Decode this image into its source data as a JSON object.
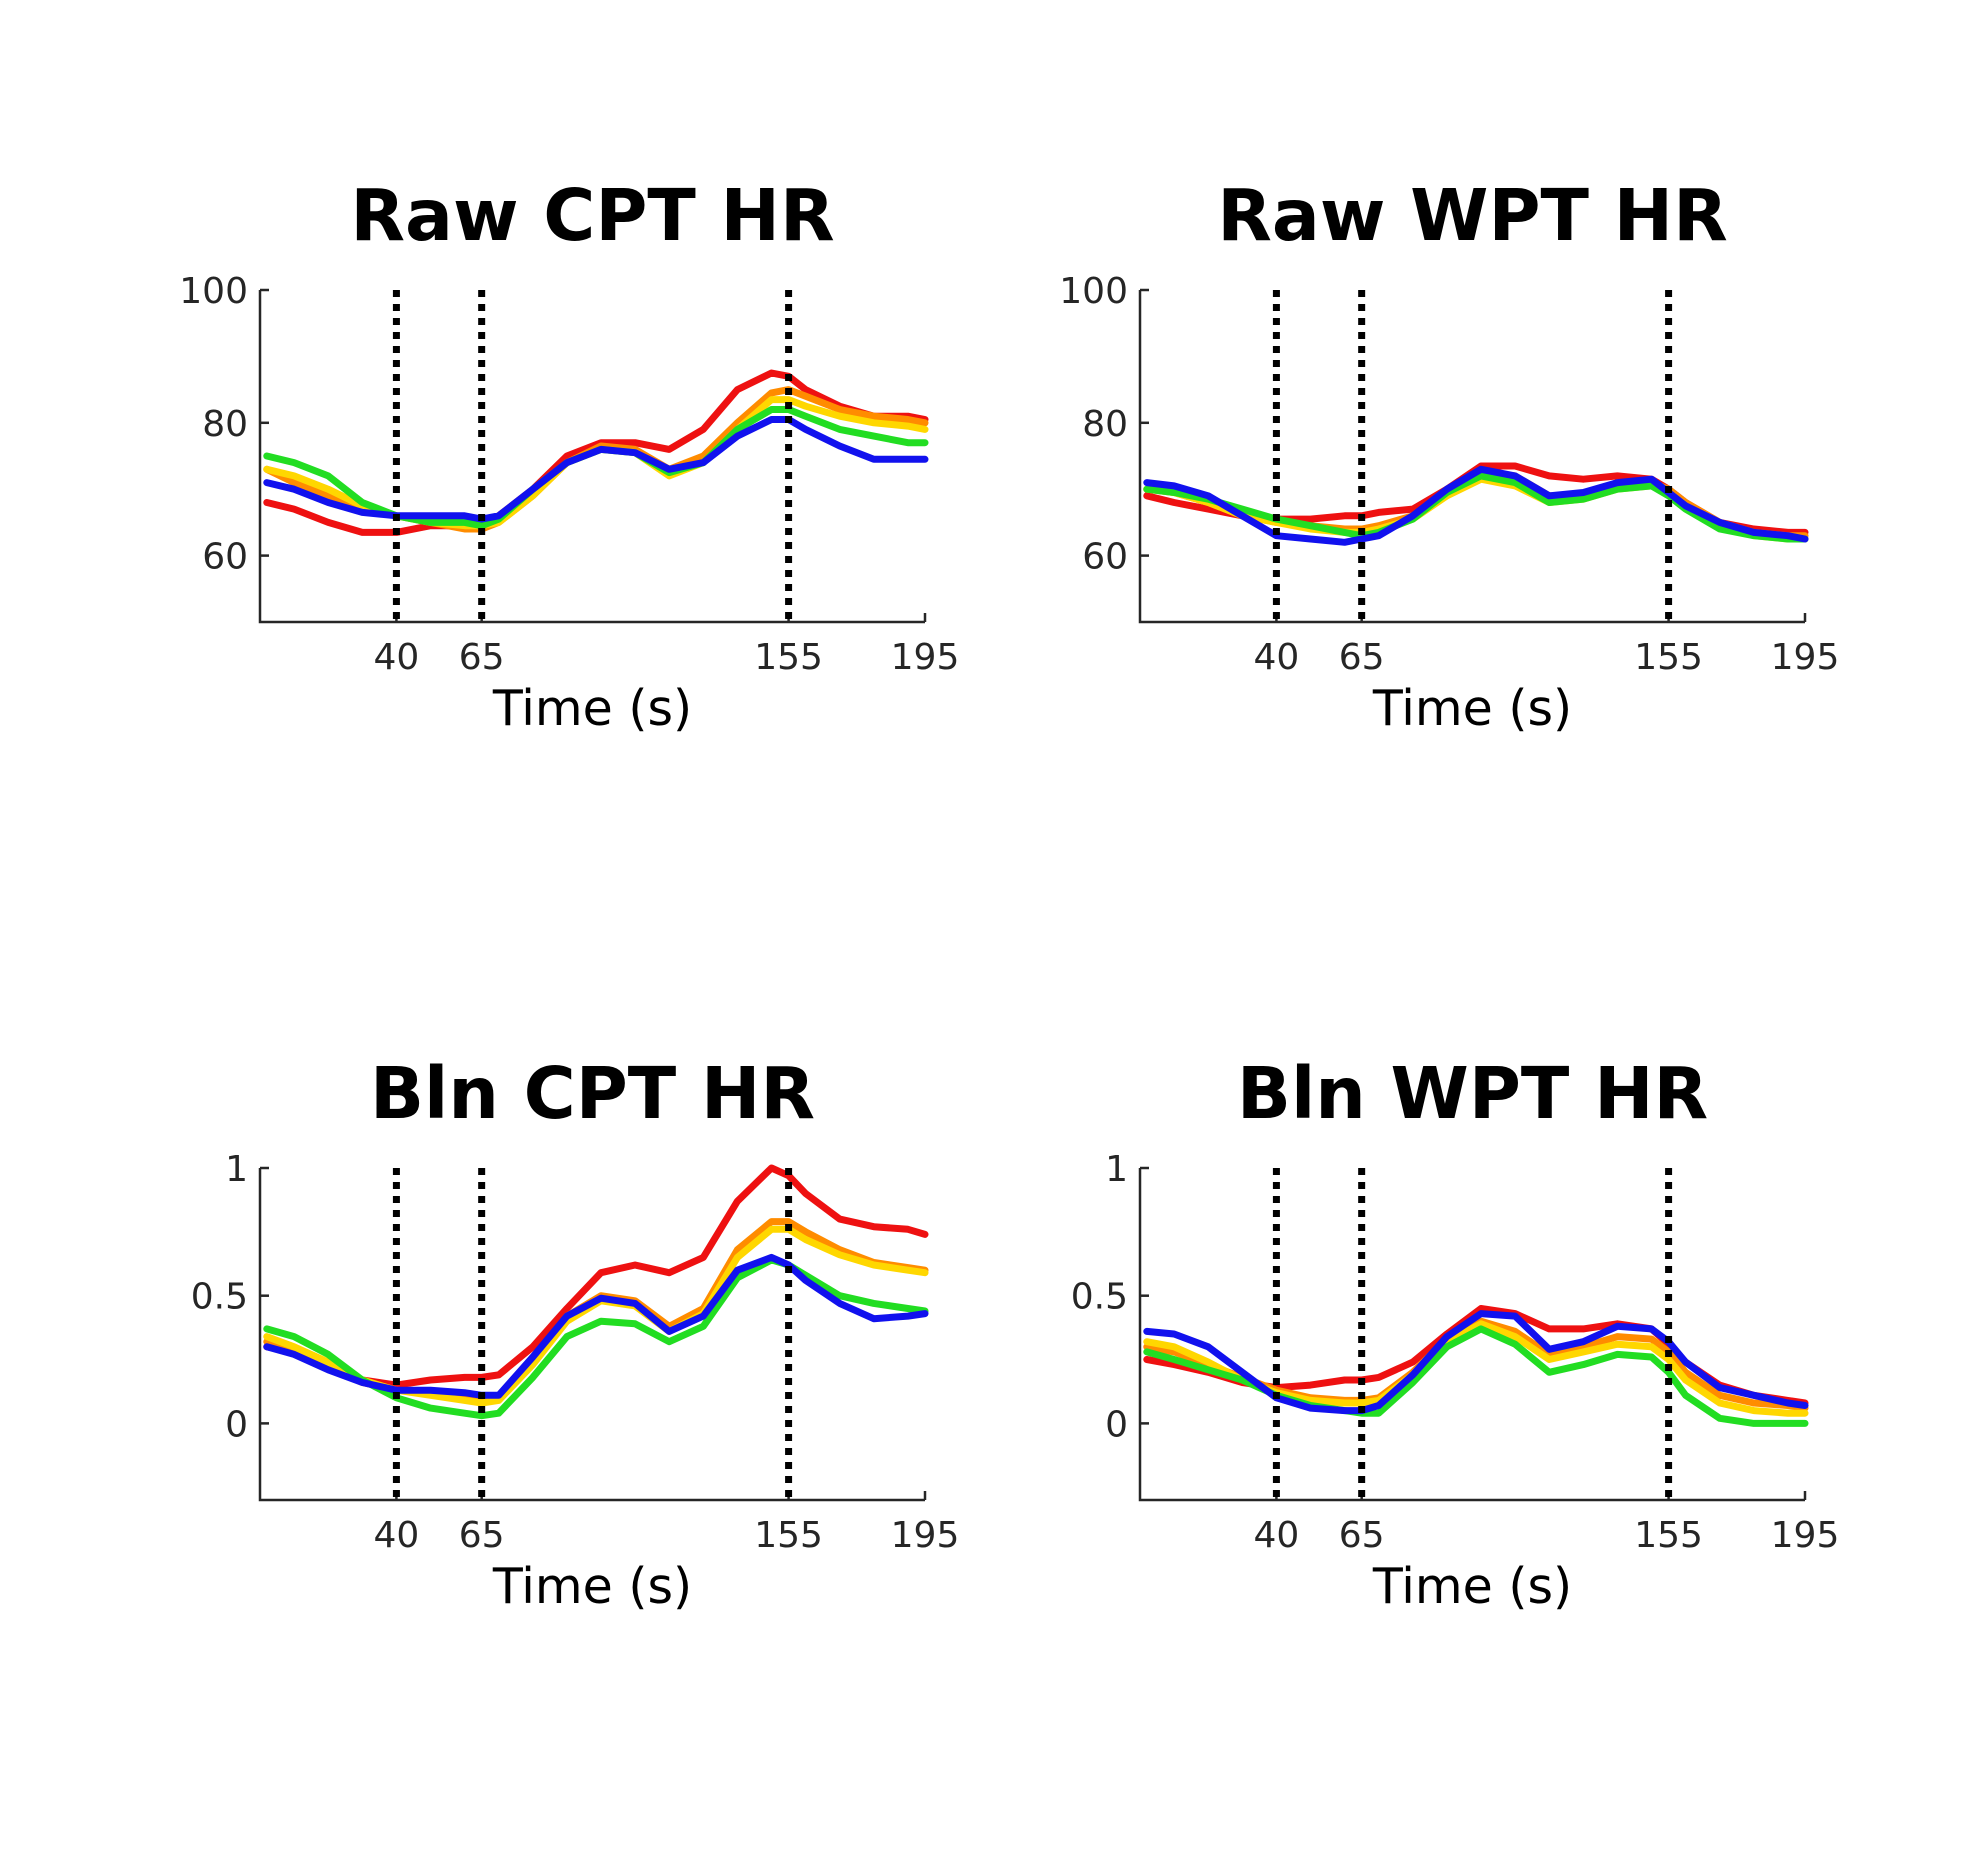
{
  "chart_data": [
    {
      "type": "line",
      "title": "Raw CPT HR",
      "xlabel": "Time (s)",
      "ylabel": "",
      "xlim": [
        0,
        195
      ],
      "ylim": [
        50,
        100
      ],
      "xticks": [
        40,
        65,
        155,
        195
      ],
      "yticks": [
        60,
        80,
        100
      ],
      "vlines": [
        40,
        65,
        155
      ],
      "x": [
        2,
        10,
        20,
        30,
        40,
        50,
        60,
        65,
        70,
        80,
        90,
        100,
        110,
        120,
        130,
        140,
        150,
        155,
        160,
        170,
        180,
        190,
        195
      ],
      "series": [
        {
          "color": "#ee1111",
          "values": [
            68,
            67,
            65,
            63.5,
            63.5,
            64.5,
            64.5,
            65,
            66,
            70,
            75,
            77,
            77,
            76,
            79,
            85,
            87.5,
            87,
            85,
            82.5,
            81,
            81,
            80.5
          ]
        },
        {
          "color": "#ff8c00",
          "values": [
            73,
            71,
            69,
            67,
            66,
            65,
            64,
            64,
            65,
            69,
            74,
            76.5,
            76,
            73,
            75,
            80,
            84.5,
            85,
            84,
            82,
            81,
            80.5,
            80
          ]
        },
        {
          "color": "#ffd700",
          "values": [
            73,
            72,
            70,
            67.5,
            66,
            65,
            64.5,
            64.5,
            65,
            69,
            74,
            76,
            75.5,
            72,
            74,
            79,
            83.5,
            83.5,
            82.5,
            81,
            80,
            79.5,
            79
          ]
        },
        {
          "color": "#22dd22",
          "values": [
            75,
            74,
            72,
            68,
            66,
            65,
            65,
            64.5,
            65.5,
            70,
            74,
            76,
            75.5,
            72.5,
            74,
            79,
            82,
            82,
            81,
            79,
            78,
            77,
            77
          ]
        },
        {
          "color": "#1111ee",
          "values": [
            71,
            70,
            68,
            66.5,
            66,
            66,
            66,
            65.5,
            66,
            70,
            74,
            76,
            75.5,
            73,
            74,
            78,
            80.5,
            80.5,
            79,
            76.5,
            74.5,
            74.5,
            74.5
          ]
        }
      ]
    },
    {
      "type": "line",
      "title": "Raw WPT HR",
      "xlabel": "Time (s)",
      "ylabel": "",
      "xlim": [
        0,
        195
      ],
      "ylim": [
        50,
        100
      ],
      "xticks": [
        40,
        65,
        155,
        195
      ],
      "yticks": [
        60,
        80,
        100
      ],
      "vlines": [
        40,
        65,
        155
      ],
      "x": [
        2,
        10,
        20,
        30,
        40,
        50,
        60,
        65,
        70,
        80,
        90,
        100,
        110,
        120,
        130,
        140,
        150,
        155,
        160,
        170,
        180,
        190,
        195
      ],
      "series": [
        {
          "color": "#ee1111",
          "values": [
            69,
            68,
            67,
            66,
            65.5,
            65.5,
            66,
            66,
            66.5,
            67,
            70,
            73.5,
            73.5,
            72,
            71.5,
            72,
            71.5,
            70,
            68,
            65,
            64,
            63.5,
            63.5
          ]
        },
        {
          "color": "#ff8c00",
          "values": [
            70,
            69.5,
            68,
            66,
            65,
            64.5,
            64,
            64,
            64.5,
            66,
            69.5,
            72.5,
            72,
            69,
            69,
            71,
            71,
            70,
            68,
            65,
            63.5,
            63,
            63
          ]
        },
        {
          "color": "#ffd700",
          "values": [
            70,
            69.5,
            68,
            66,
            65,
            64,
            63.5,
            63.5,
            64,
            65.5,
            69,
            71.5,
            70.5,
            68,
            68.5,
            70,
            70.5,
            69.5,
            67.5,
            64.5,
            63,
            62.5,
            62.5
          ]
        },
        {
          "color": "#22dd22",
          "values": [
            70,
            69.5,
            68.5,
            67,
            65.5,
            64.5,
            63.5,
            63,
            63.5,
            65.5,
            69.5,
            72,
            71,
            68,
            68.5,
            70,
            70.5,
            69,
            67,
            64,
            63,
            62.5,
            62.5
          ]
        },
        {
          "color": "#1111ee",
          "values": [
            71,
            70.5,
            69,
            66,
            63,
            62.5,
            62,
            62.5,
            63,
            66,
            70,
            73,
            72,
            69,
            69.5,
            71,
            71.5,
            69.5,
            67.5,
            65,
            63.5,
            63,
            62.5
          ]
        }
      ]
    },
    {
      "type": "line",
      "title": "Bln CPT HR",
      "xlabel": "Time (s)",
      "ylabel": "",
      "xlim": [
        0,
        195
      ],
      "ylim": [
        -0.3,
        1
      ],
      "xticks": [
        40,
        65,
        155,
        195
      ],
      "yticks": [
        0,
        0.5,
        1
      ],
      "yticklabels": [
        "0",
        "0.5",
        "1"
      ],
      "vlines": [
        40,
        65,
        155
      ],
      "x": [
        2,
        10,
        20,
        30,
        40,
        50,
        60,
        65,
        70,
        80,
        90,
        100,
        110,
        120,
        130,
        140,
        150,
        155,
        160,
        170,
        180,
        190,
        195
      ],
      "series": [
        {
          "color": "#ee1111",
          "values": [
            0.3,
            0.28,
            0.22,
            0.17,
            0.15,
            0.17,
            0.18,
            0.18,
            0.19,
            0.3,
            0.45,
            0.59,
            0.62,
            0.59,
            0.65,
            0.87,
            1.0,
            0.97,
            0.9,
            0.8,
            0.77,
            0.76,
            0.74
          ]
        },
        {
          "color": "#ff8c00",
          "values": [
            0.32,
            0.28,
            0.22,
            0.16,
            0.13,
            0.12,
            0.1,
            0.09,
            0.1,
            0.25,
            0.42,
            0.5,
            0.48,
            0.38,
            0.45,
            0.68,
            0.79,
            0.79,
            0.75,
            0.68,
            0.63,
            0.61,
            0.6
          ]
        },
        {
          "color": "#ffd700",
          "values": [
            0.34,
            0.3,
            0.24,
            0.17,
            0.13,
            0.11,
            0.09,
            0.08,
            0.09,
            0.23,
            0.4,
            0.48,
            0.46,
            0.36,
            0.43,
            0.65,
            0.76,
            0.76,
            0.72,
            0.66,
            0.62,
            0.6,
            0.59
          ]
        },
        {
          "color": "#22dd22",
          "values": [
            0.37,
            0.34,
            0.27,
            0.17,
            0.1,
            0.06,
            0.04,
            0.03,
            0.04,
            0.18,
            0.34,
            0.4,
            0.39,
            0.32,
            0.38,
            0.57,
            0.64,
            0.62,
            0.58,
            0.5,
            0.47,
            0.45,
            0.44
          ]
        },
        {
          "color": "#1111ee",
          "values": [
            0.3,
            0.27,
            0.21,
            0.16,
            0.13,
            0.13,
            0.12,
            0.11,
            0.11,
            0.26,
            0.42,
            0.49,
            0.47,
            0.36,
            0.42,
            0.6,
            0.65,
            0.62,
            0.56,
            0.47,
            0.41,
            0.42,
            0.43
          ]
        }
      ]
    },
    {
      "type": "line",
      "title": "Bln WPT HR",
      "xlabel": "Time (s)",
      "ylabel": "",
      "xlim": [
        0,
        195
      ],
      "ylim": [
        -0.3,
        1
      ],
      "xticks": [
        40,
        65,
        155,
        195
      ],
      "yticks": [
        0,
        0.5,
        1
      ],
      "yticklabels": [
        "0",
        "0.5",
        "1"
      ],
      "vlines": [
        40,
        65,
        155
      ],
      "x": [
        2,
        10,
        20,
        30,
        40,
        50,
        60,
        65,
        70,
        80,
        90,
        100,
        110,
        120,
        130,
        140,
        150,
        155,
        160,
        170,
        180,
        190,
        195
      ],
      "series": [
        {
          "color": "#ee1111",
          "values": [
            0.25,
            0.23,
            0.2,
            0.16,
            0.14,
            0.15,
            0.17,
            0.17,
            0.18,
            0.24,
            0.35,
            0.45,
            0.43,
            0.37,
            0.37,
            0.39,
            0.37,
            0.31,
            0.24,
            0.15,
            0.11,
            0.09,
            0.08
          ]
        },
        {
          "color": "#ff8c00",
          "values": [
            0.3,
            0.28,
            0.23,
            0.18,
            0.13,
            0.1,
            0.09,
            0.09,
            0.1,
            0.2,
            0.33,
            0.4,
            0.36,
            0.27,
            0.3,
            0.34,
            0.33,
            0.28,
            0.2,
            0.11,
            0.08,
            0.07,
            0.06
          ]
        },
        {
          "color": "#ffd700",
          "values": [
            0.32,
            0.3,
            0.24,
            0.17,
            0.12,
            0.09,
            0.08,
            0.08,
            0.09,
            0.19,
            0.32,
            0.39,
            0.34,
            0.25,
            0.28,
            0.31,
            0.3,
            0.25,
            0.17,
            0.08,
            0.05,
            0.04,
            0.04
          ]
        },
        {
          "color": "#22dd22",
          "values": [
            0.28,
            0.25,
            0.21,
            0.17,
            0.11,
            0.07,
            0.05,
            0.04,
            0.04,
            0.16,
            0.3,
            0.37,
            0.31,
            0.2,
            0.23,
            0.27,
            0.26,
            0.2,
            0.11,
            0.02,
            0.0,
            0.0,
            0.0
          ]
        },
        {
          "color": "#1111ee",
          "values": [
            0.36,
            0.35,
            0.3,
            0.2,
            0.1,
            0.06,
            0.05,
            0.05,
            0.07,
            0.19,
            0.34,
            0.43,
            0.42,
            0.29,
            0.32,
            0.38,
            0.37,
            0.32,
            0.24,
            0.14,
            0.11,
            0.08,
            0.07
          ]
        }
      ]
    }
  ]
}
